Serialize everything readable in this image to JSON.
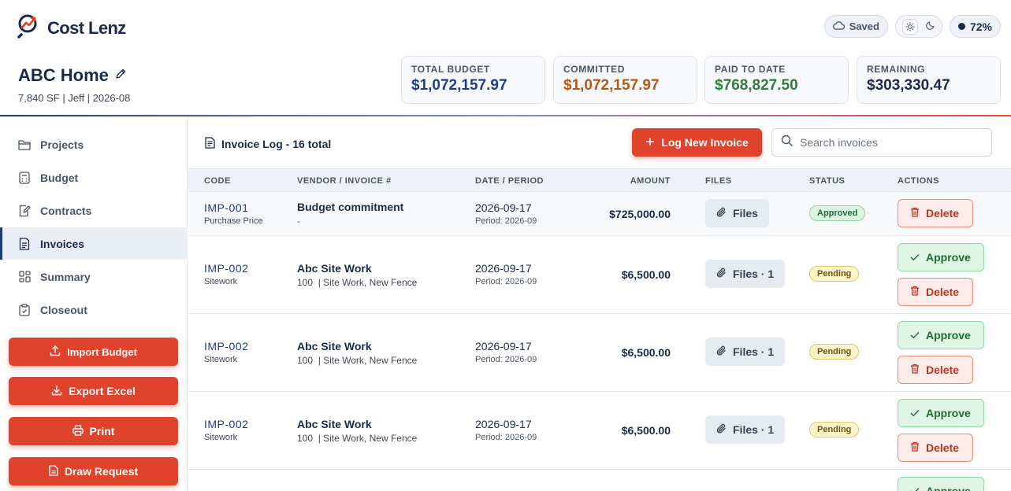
{
  "app": {
    "brand": "Cost Lenz"
  },
  "topbar": {
    "saved_label": "Saved",
    "percent": "72%"
  },
  "project": {
    "name": "ABC Home",
    "meta": "7,840 SF | Jeff | 2026-08"
  },
  "stats": [
    {
      "label": "TOTAL BUDGET",
      "value": "$1,072,157.97",
      "color": "#1f3a8a"
    },
    {
      "label": "COMMITTED",
      "value": "$1,072,157.97",
      "color": "#b35a12"
    },
    {
      "label": "PAID TO DATE",
      "value": "$768,827.50",
      "color": "#2e7d3a"
    },
    {
      "label": "REMAINING",
      "value": "$303,330.47",
      "color": "#1b2a4a"
    }
  ],
  "sidebar": {
    "items": [
      {
        "label": "Projects",
        "icon": "folder-icon"
      },
      {
        "label": "Budget",
        "icon": "calculator-icon"
      },
      {
        "label": "Contracts",
        "icon": "contract-icon"
      },
      {
        "label": "Invoices",
        "icon": "invoice-icon",
        "active": true
      },
      {
        "label": "Summary",
        "icon": "grid-icon"
      },
      {
        "label": "Closeout",
        "icon": "clipboard-icon"
      }
    ],
    "buttons": [
      {
        "label": "Import Budget",
        "icon": "upload-icon"
      },
      {
        "label": "Export Excel",
        "icon": "download-icon"
      },
      {
        "label": "Print",
        "icon": "printer-icon"
      },
      {
        "label": "Draw Request",
        "icon": "document-icon"
      }
    ]
  },
  "main": {
    "title": "Invoice Log - 16 total",
    "log_button": "Log New Invoice",
    "search_placeholder": "Search invoices",
    "columns": [
      "CODE",
      "VENDOR / INVOICE #",
      "DATE / PERIOD",
      "AMOUNT",
      "FILES",
      "STATUS",
      "ACTIONS"
    ],
    "rows": [
      {
        "code": "IMP-001",
        "code_sub": "Purchase Price",
        "vendor": "Budget commitment",
        "vendor_sub": "-",
        "date": "2026-09-17",
        "period": "Period: 2026-09",
        "amount": "$725,000.00",
        "files": "Files",
        "status": "Approved"
      },
      {
        "code": "IMP-002",
        "code_sub": "Sitework",
        "vendor": "Abc Site Work",
        "vendor_sub": "100  | Site Work, New Fence",
        "date": "2026-09-17",
        "period": "Period: 2026-09",
        "amount": "$6,500.00",
        "files": "Files · 1",
        "status": "Pending"
      },
      {
        "code": "IMP-002",
        "code_sub": "Sitework",
        "vendor": "Abc Site Work",
        "vendor_sub": "100  | Site Work, New Fence",
        "date": "2026-09-17",
        "period": "Period: 2026-09",
        "amount": "$6,500.00",
        "files": "Files · 1",
        "status": "Pending"
      },
      {
        "code": "IMP-002",
        "code_sub": "Sitework",
        "vendor": "Abc Site Work",
        "vendor_sub": "100  | Site Work, New Fence",
        "date": "2026-09-17",
        "period": "Period: 2026-09",
        "amount": "$6,500.00",
        "files": "Files · 1",
        "status": "Pending"
      }
    ],
    "approve_label": "Approve",
    "delete_label": "Delete"
  }
}
